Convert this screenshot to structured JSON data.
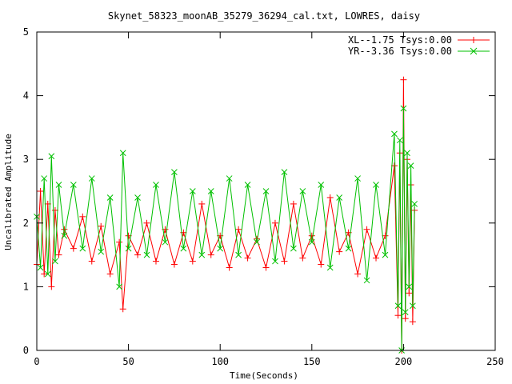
{
  "chart_data": {
    "type": "line",
    "title": "Skynet_58323_moonAB_35279_36294_cal.txt, LOWRES, daisy",
    "xlabel": "Time(Seconds)",
    "ylabel": "Uncalibrated Amplitude",
    "xlim": [
      0,
      250
    ],
    "ylim": [
      0,
      5
    ],
    "xticks": [
      0,
      50,
      100,
      150,
      200,
      250
    ],
    "yticks": [
      0,
      1,
      2,
      3,
      4,
      5
    ],
    "x_tick_labels": [
      "0",
      "50",
      "100",
      "150",
      "200",
      "250"
    ],
    "y_tick_labels": [
      "0",
      "1",
      "2",
      "3",
      "4",
      "5"
    ],
    "grid": false,
    "legend_position": "top-right",
    "series": [
      {
        "name": "XL--1.75 Tsys:0.00",
        "color": "#ff0000",
        "marker": "plus",
        "x": [
          0,
          2,
          4,
          6,
          8,
          10,
          12,
          15,
          20,
          25,
          30,
          35,
          40,
          45,
          47,
          50,
          55,
          60,
          65,
          70,
          75,
          80,
          85,
          90,
          95,
          100,
          105,
          110,
          115,
          120,
          125,
          130,
          135,
          140,
          145,
          150,
          155,
          160,
          165,
          170,
          175,
          180,
          185,
          190,
          195,
          197,
          198,
          199,
          200,
          201,
          202,
          203,
          204,
          205,
          206
        ],
        "values": [
          1.35,
          2.5,
          1.2,
          2.3,
          1.0,
          2.2,
          1.5,
          1.9,
          1.6,
          2.1,
          1.4,
          1.95,
          1.2,
          1.7,
          0.65,
          1.8,
          1.5,
          2.0,
          1.4,
          1.9,
          1.35,
          1.85,
          1.4,
          2.3,
          1.5,
          1.8,
          1.3,
          1.9,
          1.45,
          1.75,
          1.3,
          2.0,
          1.4,
          2.3,
          1.45,
          1.8,
          1.35,
          2.4,
          1.55,
          1.85,
          1.2,
          1.9,
          1.45,
          1.8,
          2.9,
          0.55,
          3.1,
          0.0,
          4.25,
          0.5,
          3.0,
          0.9,
          2.6,
          0.45,
          2.2
        ]
      },
      {
        "name": "YR--3.36 Tsys:0.00",
        "color": "#00c000",
        "marker": "cross",
        "x": [
          0,
          2,
          4,
          6,
          8,
          10,
          12,
          15,
          20,
          25,
          30,
          35,
          40,
          45,
          47,
          50,
          55,
          60,
          65,
          70,
          75,
          80,
          85,
          90,
          95,
          100,
          105,
          110,
          115,
          120,
          125,
          130,
          135,
          140,
          145,
          150,
          155,
          160,
          165,
          170,
          175,
          180,
          185,
          190,
          195,
          197,
          198,
          199,
          200,
          201,
          202,
          203,
          204,
          205,
          206
        ],
        "values": [
          2.1,
          1.3,
          2.7,
          1.2,
          3.05,
          1.4,
          2.6,
          1.8,
          2.6,
          1.6,
          2.7,
          1.55,
          2.4,
          1.0,
          3.1,
          1.6,
          2.4,
          1.5,
          2.6,
          1.7,
          2.8,
          1.6,
          2.5,
          1.5,
          2.5,
          1.6,
          2.7,
          1.5,
          2.6,
          1.7,
          2.5,
          1.4,
          2.8,
          1.6,
          2.5,
          1.7,
          2.6,
          1.3,
          2.4,
          1.6,
          2.7,
          1.1,
          2.6,
          1.5,
          3.4,
          0.7,
          3.3,
          0.0,
          3.8,
          0.6,
          3.1,
          1.0,
          2.9,
          0.7,
          2.3
        ]
      }
    ]
  }
}
